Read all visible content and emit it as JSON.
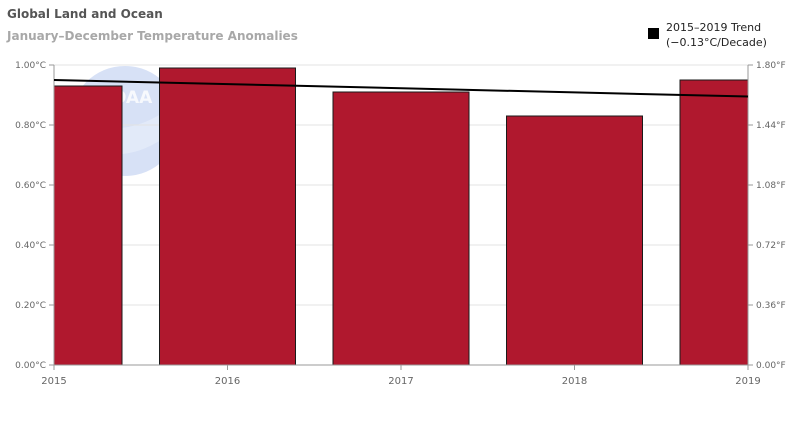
{
  "chart_data": {
    "type": "bar",
    "title": "Global Land and Ocean",
    "subtitle": "January–December Temperature Anomalies",
    "categories": [
      "2015",
      "2016",
      "2017",
      "2018",
      "2019"
    ],
    "series": [
      {
        "name": "",
        "values": [
          0.93,
          0.99,
          0.91,
          0.83,
          0.95
        ],
        "color": "#b0182e"
      }
    ],
    "trend": {
      "label_line1": "2015–2019 Trend",
      "label_line2": "(−0.13°C/Decade)",
      "start": 0.95,
      "end": 0.895,
      "color": "#000000"
    },
    "y_left": {
      "min": 0,
      "max": 1.0,
      "ticks": [
        "0.00°C",
        "0.20°C",
        "0.40°C",
        "0.60°C",
        "0.80°C",
        "1.00°C"
      ]
    },
    "y_right": {
      "ticks": [
        "0.00°F",
        "0.36°F",
        "0.72°F",
        "1.08°F",
        "1.44°F",
        "1.80°F"
      ]
    },
    "watermark": "NOAA",
    "grid": true,
    "legend_position": "top-right"
  }
}
